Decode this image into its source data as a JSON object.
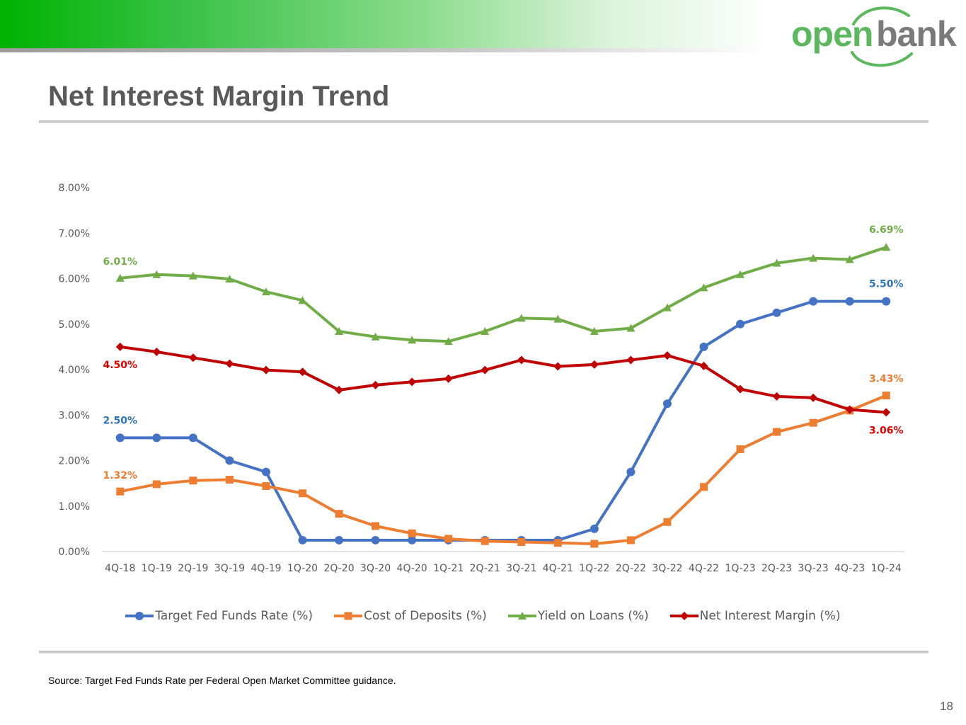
{
  "header": {
    "logo_open": "open",
    "logo_bank": "bank",
    "brand_green": "#5cb85c",
    "brand_gray": "#7a7a7a"
  },
  "page_title": "Net Interest Margin Trend",
  "footer": {
    "source": "Source: Target Fed Funds Rate per Federal Open Market Committee guidance.",
    "page_number": "18"
  },
  "chart_data": {
    "type": "line",
    "title": "",
    "xlabel": "",
    "ylabel": "",
    "ylim": [
      0,
      8
    ],
    "y_ticks": [
      "0.00%",
      "1.00%",
      "2.00%",
      "3.00%",
      "4.00%",
      "5.00%",
      "6.00%",
      "7.00%",
      "8.00%"
    ],
    "grid": false,
    "legend_position": "bottom",
    "categories": [
      "4Q-18",
      "1Q-19",
      "2Q-19",
      "3Q-19",
      "4Q-19",
      "1Q-20",
      "2Q-20",
      "3Q-20",
      "4Q-20",
      "1Q-21",
      "2Q-21",
      "3Q-21",
      "4Q-21",
      "1Q-22",
      "2Q-22",
      "3Q-22",
      "4Q-22",
      "1Q-23",
      "2Q-23",
      "3Q-23",
      "4Q-23",
      "1Q-24"
    ],
    "series": [
      {
        "name": "Target Fed Funds Rate (%)",
        "color": "#4472c4",
        "marker": "circle",
        "values": [
          2.5,
          2.5,
          2.5,
          2.0,
          1.75,
          0.25,
          0.25,
          0.25,
          0.25,
          0.25,
          0.25,
          0.25,
          0.25,
          0.5,
          1.75,
          3.25,
          4.5,
          5.0,
          5.25,
          5.5,
          5.5,
          5.5
        ],
        "labels": {
          "first": "2.50%",
          "last": "5.50%"
        }
      },
      {
        "name": "Cost of Deposits (%)",
        "color": "#ed7d31",
        "marker": "square",
        "values": [
          1.32,
          1.48,
          1.56,
          1.58,
          1.44,
          1.28,
          0.83,
          0.56,
          0.4,
          0.28,
          0.23,
          0.21,
          0.19,
          0.17,
          0.25,
          0.65,
          1.42,
          2.25,
          2.63,
          2.83,
          3.1,
          3.43
        ],
        "labels": {
          "first": "1.32%",
          "last": "3.43%"
        }
      },
      {
        "name": "Yield on Loans (%)",
        "color": "#70ad47",
        "marker": "triangle",
        "values": [
          6.01,
          6.09,
          6.06,
          5.99,
          5.71,
          5.52,
          4.84,
          4.72,
          4.65,
          4.62,
          4.84,
          5.13,
          5.11,
          4.84,
          4.91,
          5.36,
          5.8,
          6.09,
          6.34,
          6.45,
          6.42,
          6.69
        ],
        "labels": {
          "first": "6.01%",
          "last": "6.69%"
        }
      },
      {
        "name": "Net Interest Margin (%)",
        "color": "#c00000",
        "marker": "diamond",
        "values": [
          4.5,
          4.39,
          4.26,
          4.13,
          3.99,
          3.95,
          3.55,
          3.66,
          3.73,
          3.8,
          3.99,
          4.21,
          4.07,
          4.11,
          4.21,
          4.31,
          4.08,
          3.57,
          3.41,
          3.38,
          3.12,
          3.06
        ],
        "labels": {
          "first": "4.50%",
          "last": "3.06%"
        }
      }
    ],
    "label_colors": {
      "Target Fed Funds Rate (%)": "#2e75b6",
      "Cost of Deposits (%)": "#ed7d31",
      "Yield on Loans (%)": "#70ad47",
      "Net Interest Margin (%)": "#e00000"
    }
  }
}
